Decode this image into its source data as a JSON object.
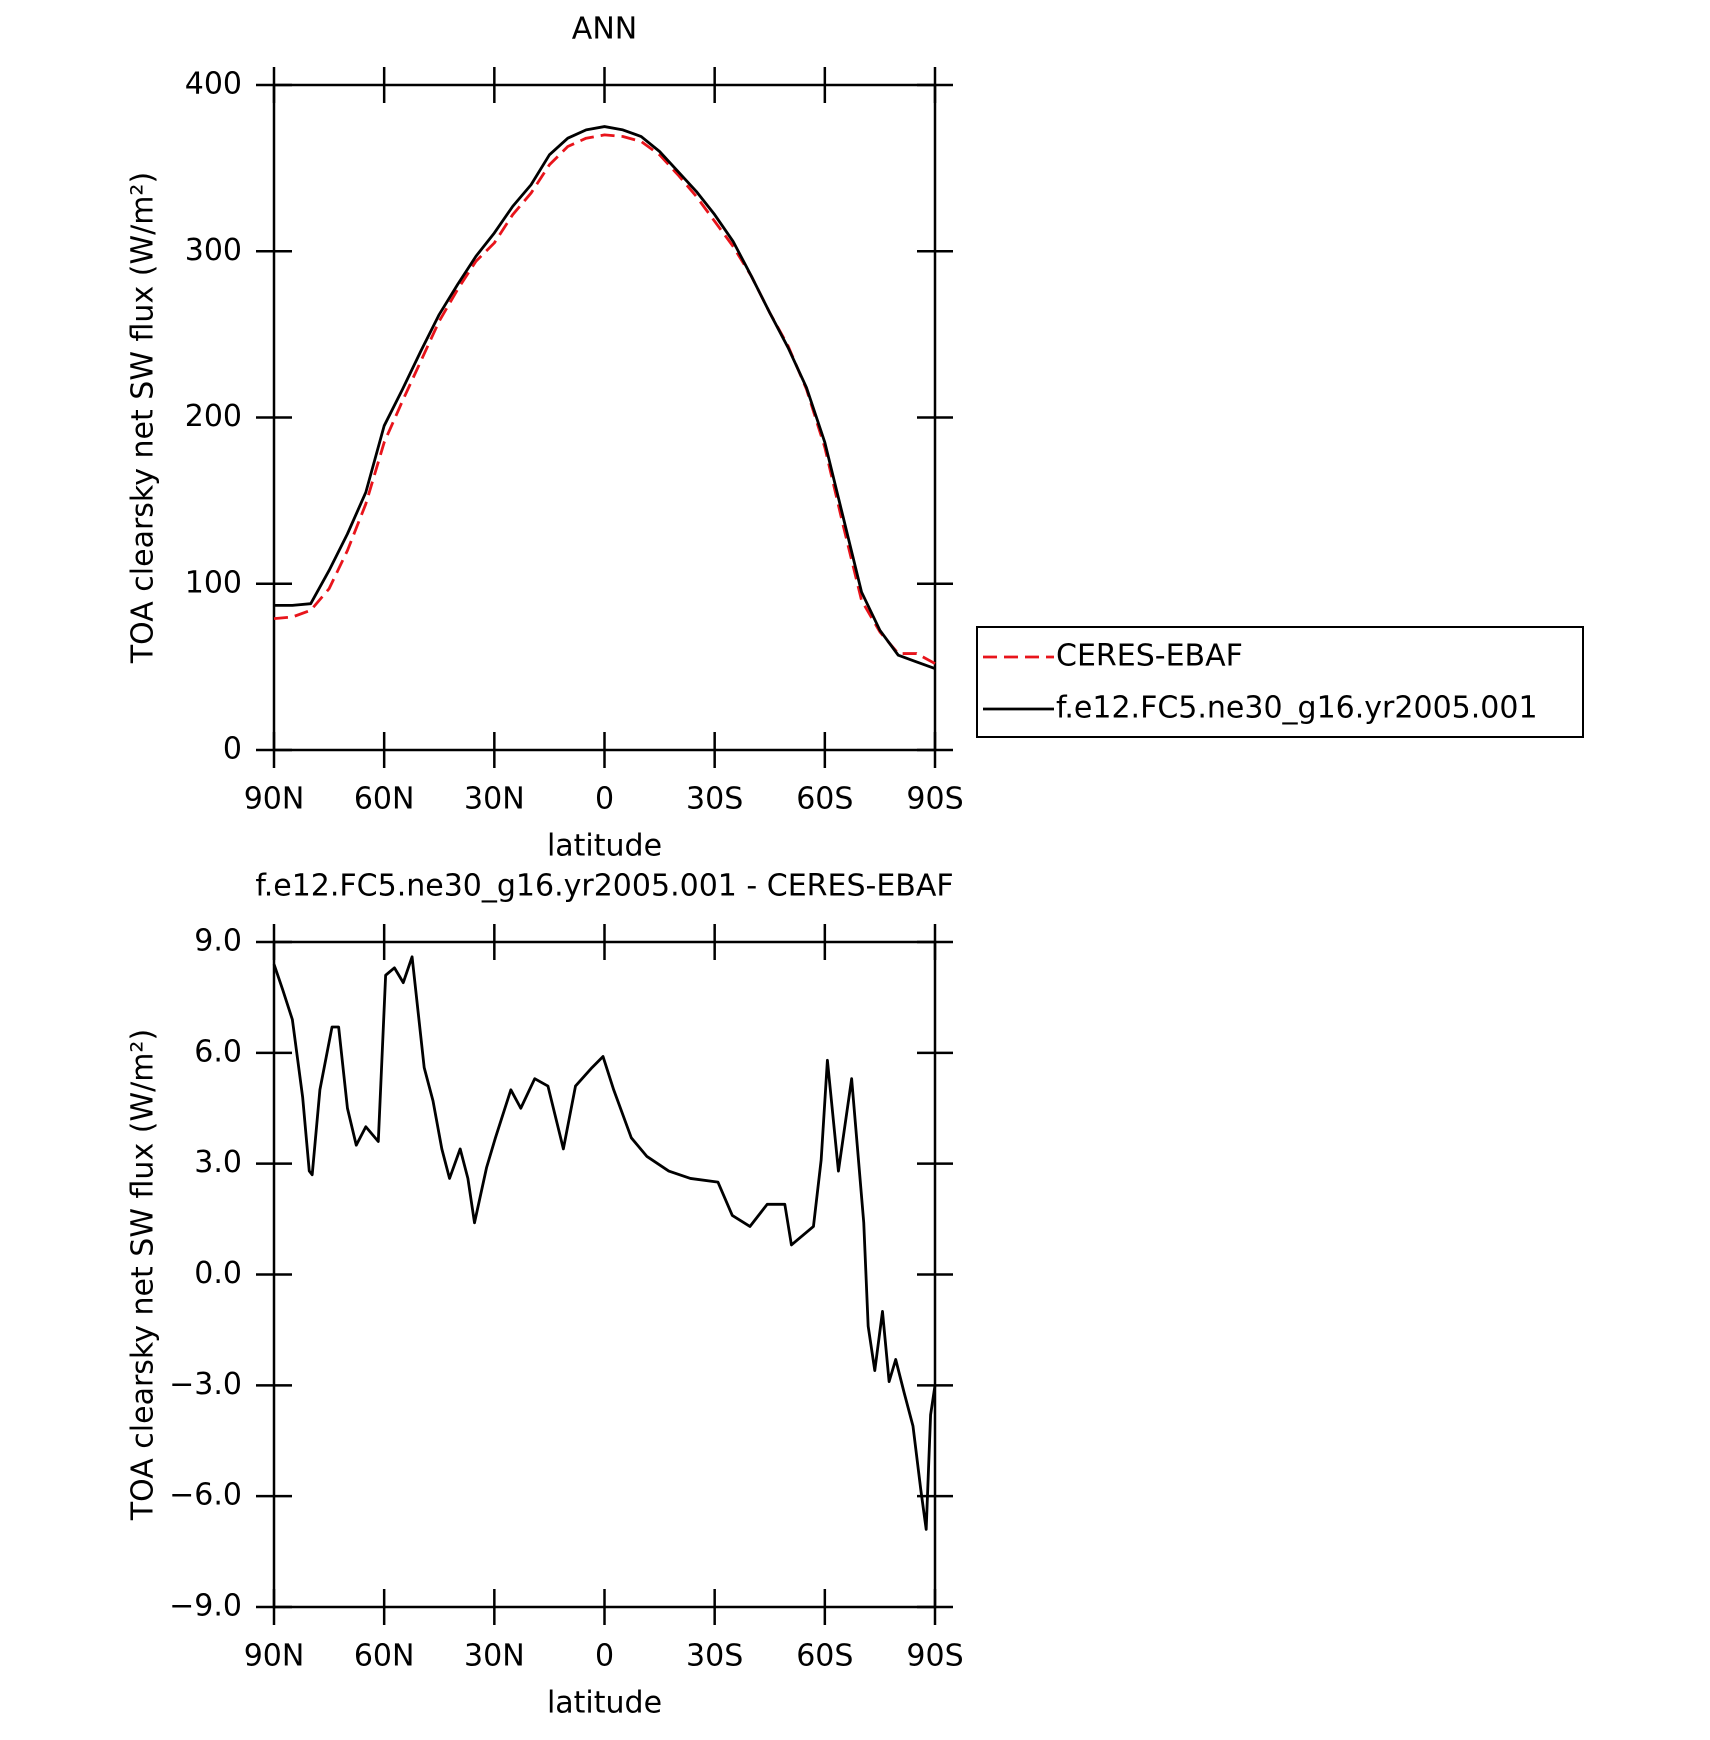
{
  "chart_data": [
    {
      "type": "line",
      "title": "ANN",
      "xlabel": "latitude",
      "ylabel": "TOA clearsky net SW flux (W/m²)",
      "x": [
        90,
        85,
        80,
        75,
        70,
        65,
        60,
        55,
        50,
        45,
        40,
        35,
        30,
        25,
        20,
        15,
        10,
        5,
        0,
        -5,
        -10,
        -15,
        -20,
        -25,
        -30,
        -35,
        -40,
        -45,
        -50,
        -55,
        -60,
        -65,
        -70,
        -75,
        -80,
        -85,
        -90
      ],
      "series": [
        {
          "name": "CERES-EBAF",
          "color": "#e8141b",
          "style": "dashed",
          "values": [
            79,
            80,
            84,
            97,
            120,
            148,
            185,
            210,
            234,
            258,
            277,
            294,
            305,
            322,
            335,
            352,
            363,
            368,
            370,
            369,
            366,
            358,
            346,
            333,
            318,
            303,
            285,
            263,
            243,
            217,
            182,
            135,
            90,
            71,
            58,
            58,
            52
          ]
        },
        {
          "name": "f.e12.FC5.ne30_g16.yr2005.001",
          "color": "#000000",
          "style": "solid",
          "values": [
            87,
            87,
            88,
            108,
            130,
            155,
            195,
            217,
            240,
            262,
            280,
            297,
            311,
            327,
            340,
            358,
            368,
            373,
            375,
            373,
            369,
            360,
            348,
            336,
            322,
            306,
            285,
            263,
            242,
            218,
            185,
            140,
            95,
            72,
            57,
            53,
            49
          ]
        }
      ],
      "xlim": [
        90,
        -90
      ],
      "xticks": [
        {
          "value": 90,
          "label": "90N"
        },
        {
          "value": 60,
          "label": "60N"
        },
        {
          "value": 30,
          "label": "30N"
        },
        0,
        {
          "value": -30,
          "label": "30S"
        },
        {
          "value": -60,
          "label": "60S"
        },
        {
          "value": -90,
          "label": "90S"
        }
      ],
      "ylim": [
        0,
        400
      ],
      "yticks": [
        0,
        100,
        200,
        300,
        400
      ],
      "legend": "right"
    },
    {
      "type": "line",
      "title": "f.e12.FC5.ne30_g16.yr2005.001 - CERES-EBAF",
      "xlabel": "latitude",
      "ylabel": "TOA clearsky net SW flux (W/m²)",
      "x": [
        90,
        87.6,
        85,
        82.2,
        80.4,
        79.6,
        77.5,
        74.2,
        72.4,
        70,
        67.6,
        65,
        61.6,
        59.6,
        57.2,
        54.8,
        52.4,
        49.1,
        46.7,
        44.3,
        42.2,
        39.3,
        37.2,
        35.4,
        32.1,
        29.7,
        25.5,
        22.8,
        19,
        15.4,
        11.2,
        7.9,
        3.4,
        0.4,
        -2.5,
        -7.3,
        -11.5,
        -17.5,
        -23.4,
        -30.9,
        -34.8,
        -39.6,
        -44.3,
        -49.1,
        -50.9,
        -56.9,
        -59,
        -60.7,
        -63.7,
        -67.3,
        -70.6,
        -71.8,
        -73.6,
        -75.7,
        -77.5,
        -79.3,
        -81.6,
        -84,
        -86.1,
        -87.6,
        -88.8,
        -90
      ],
      "series": [
        {
          "color": "#000000",
          "style": "solid",
          "values": [
            8.4,
            7.7,
            6.9,
            4.8,
            2.8,
            2.7,
            5.0,
            6.7,
            6.7,
            4.5,
            3.5,
            4.0,
            3.6,
            8.1,
            8.3,
            7.9,
            8.6,
            5.6,
            4.7,
            3.4,
            2.6,
            3.4,
            2.6,
            1.4,
            2.9,
            3.7,
            5.0,
            4.5,
            5.3,
            5.1,
            3.4,
            5.1,
            5.6,
            5.9,
            5.0,
            3.7,
            3.2,
            2.8,
            2.6,
            2.5,
            1.6,
            1.3,
            1.9,
            1.9,
            0.8,
            1.3,
            3.1,
            5.8,
            2.8,
            5.3,
            1.4,
            -1.4,
            -2.6,
            -1.0,
            -2.9,
            -2.3,
            -3.2,
            -4.1,
            -5.8,
            -6.9,
            -3.8,
            -3.0
          ]
        }
      ],
      "xlim": [
        90,
        -90
      ],
      "xticks": [
        {
          "value": 90,
          "label": "90N"
        },
        {
          "value": 60,
          "label": "60N"
        },
        {
          "value": 30,
          "label": "30N"
        },
        0,
        {
          "value": -30,
          "label": "30S"
        },
        {
          "value": -60,
          "label": "60S"
        },
        {
          "value": -90,
          "label": "90S"
        }
      ],
      "ylim": [
        -9,
        9
      ],
      "yticks": [
        {
          "value": -9,
          "label": "−9.0"
        },
        {
          "value": -6,
          "label": "−6.0"
        },
        {
          "value": -3,
          "label": "−3.0"
        },
        {
          "value": 0,
          "label": "0.0"
        },
        {
          "value": 3,
          "label": "3.0"
        },
        {
          "value": 6,
          "label": "6.0"
        },
        {
          "value": 9,
          "label": "9.0"
        }
      ]
    }
  ]
}
